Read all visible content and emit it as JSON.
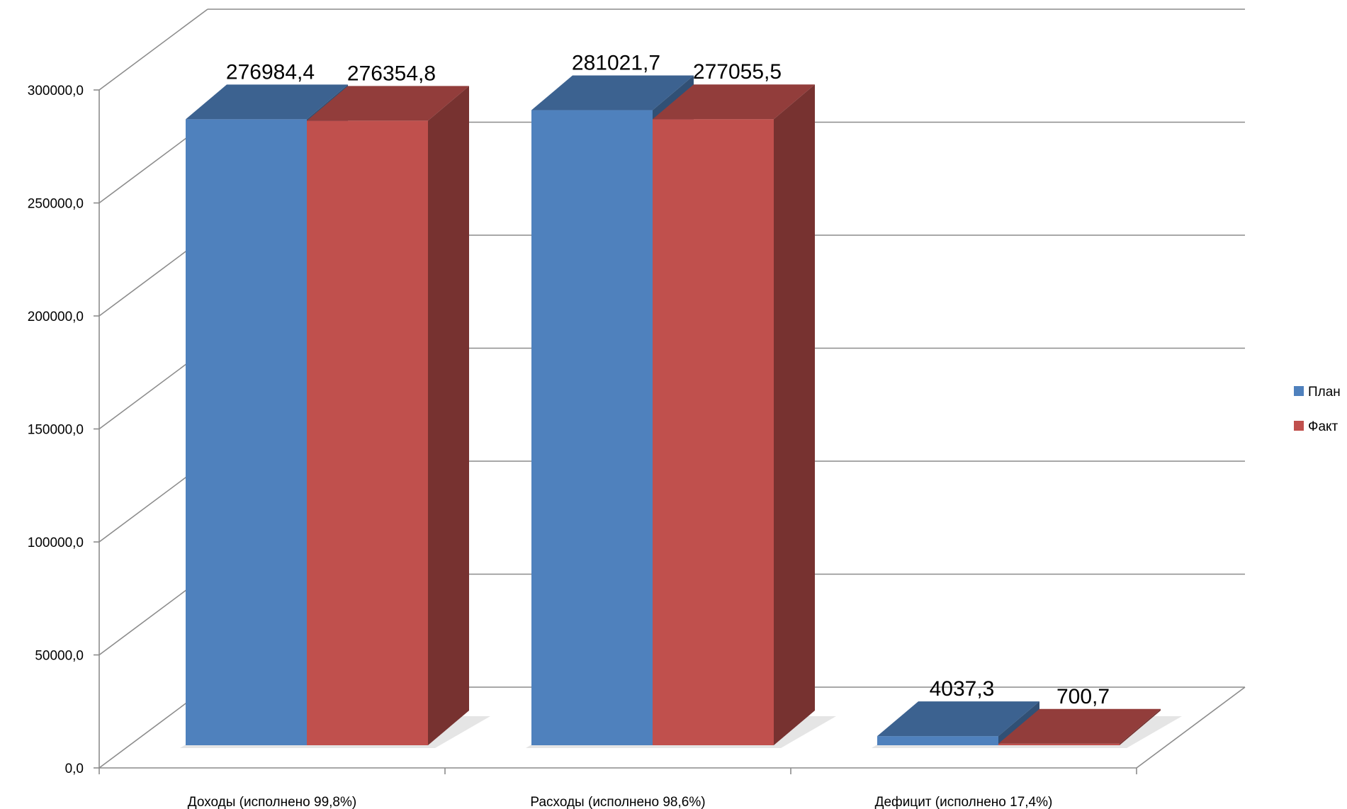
{
  "chart_data": {
    "type": "bar",
    "three_d": true,
    "title": "",
    "xlabel": "",
    "ylabel": "",
    "categories": [
      "Доходы (исполнено 99,8%)",
      "Расходы (исполнено 98,6%)",
      "Дефицит (исполнено 17,4%)"
    ],
    "series": [
      {
        "name": "План",
        "values": [
          276984.4,
          281021.7,
          4037.3
        ],
        "labels": [
          "276984,4",
          "281021,7",
          "4037,3"
        ],
        "color": "#4f81bd"
      },
      {
        "name": "Факт",
        "values": [
          276354.8,
          277055.5,
          700.7
        ],
        "labels": [
          "276354,8",
          "277055,5",
          "700,7"
        ],
        "color": "#c0504d"
      }
    ],
    "ylim": [
      0,
      300000
    ],
    "yticks": [
      0,
      50000,
      100000,
      150000,
      200000,
      250000,
      300000
    ],
    "ytick_labels": [
      "0,0",
      "50000,0",
      "100000,0",
      "150000,0",
      "200000,0",
      "250000,0",
      "300000,0"
    ],
    "grid": true,
    "legend_position": "right"
  }
}
